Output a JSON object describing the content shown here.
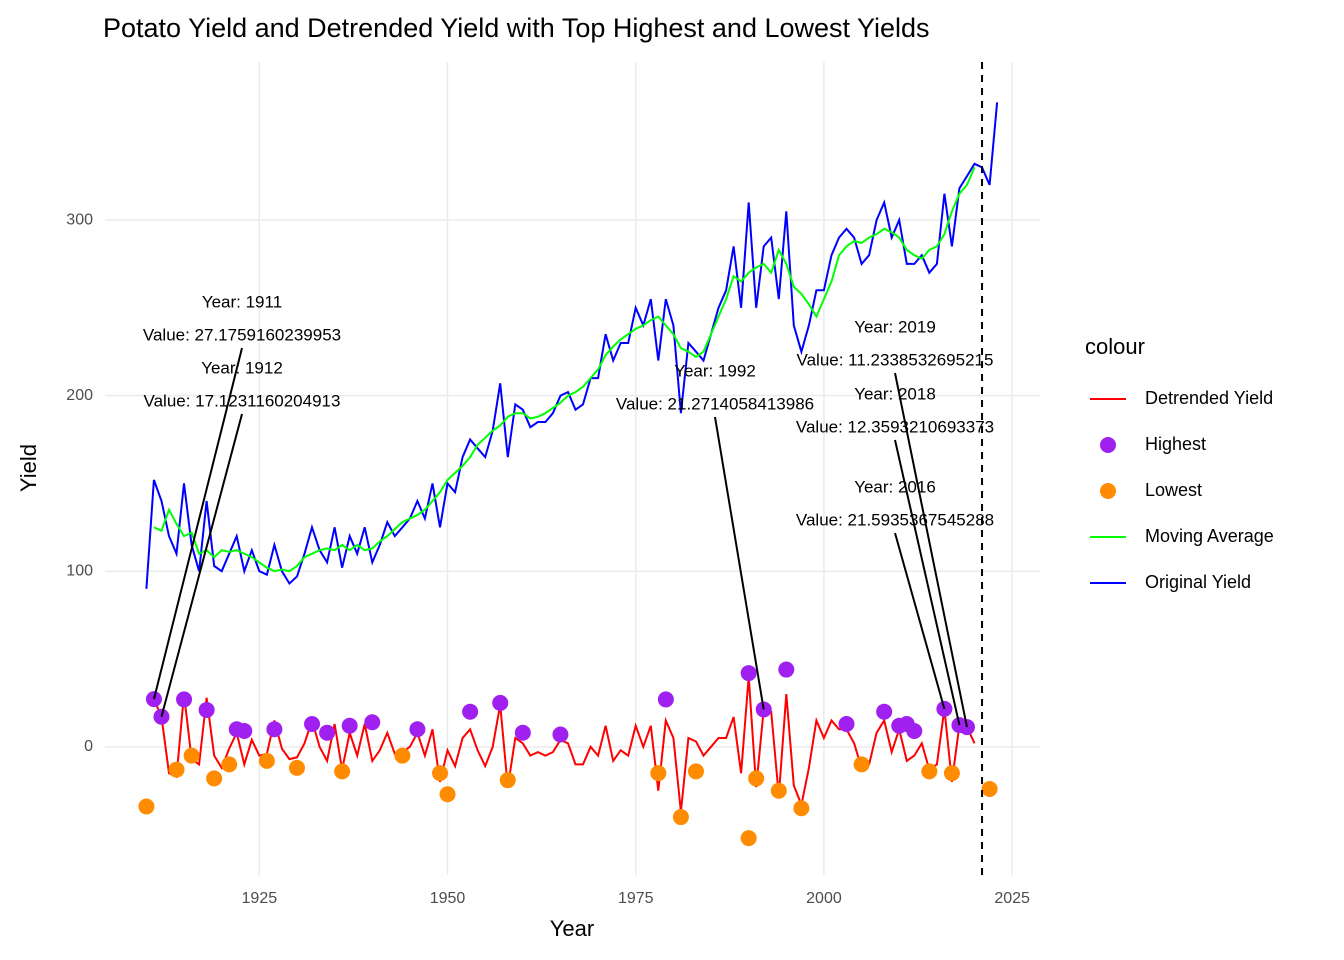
{
  "chart_data": {
    "type": "line",
    "title": "Potato Yield and Detrended Yield with Top Highest and Lowest Yields",
    "x_label": "Year",
    "y_label": "Yield",
    "legend_title": "colour",
    "xlim": [
      1904.5,
      2028.7
    ],
    "ylim": [
      -73,
      390
    ],
    "xticks": [
      1925,
      1950,
      1975,
      2000,
      2025
    ],
    "yticks": [
      0,
      100,
      200,
      300
    ],
    "grid": true,
    "vline": 2021,
    "x": [
      1910,
      1911,
      1912,
      1913,
      1914,
      1915,
      1916,
      1917,
      1918,
      1919,
      1920,
      1921,
      1922,
      1923,
      1924,
      1925,
      1926,
      1927,
      1928,
      1929,
      1930,
      1931,
      1932,
      1933,
      1934,
      1935,
      1936,
      1937,
      1938,
      1939,
      1940,
      1941,
      1942,
      1943,
      1944,
      1945,
      1946,
      1947,
      1948,
      1949,
      1950,
      1951,
      1952,
      1953,
      1954,
      1955,
      1956,
      1957,
      1958,
      1959,
      1960,
      1961,
      1962,
      1963,
      1964,
      1965,
      1966,
      1967,
      1968,
      1969,
      1970,
      1971,
      1972,
      1973,
      1974,
      1975,
      1976,
      1977,
      1978,
      1979,
      1980,
      1981,
      1982,
      1983,
      1984,
      1985,
      1986,
      1987,
      1988,
      1989,
      1990,
      1991,
      1992,
      1993,
      1994,
      1995,
      1996,
      1997,
      1998,
      1999,
      2000,
      2001,
      2002,
      2003,
      2004,
      2005,
      2006,
      2007,
      2008,
      2009,
      2010,
      2011,
      2012,
      2013,
      2014,
      2015,
      2016,
      2017,
      2018,
      2019,
      2020,
      2021,
      2022,
      2023
    ],
    "series": [
      {
        "name": "Detrended Yield",
        "color": "#ff0000",
        "values": [
          null,
          27.1759160239953,
          17.1231160204913,
          -15,
          -17,
          30,
          -7,
          -10,
          28,
          -5,
          -12,
          -1,
          8,
          -10,
          4,
          -5,
          -4,
          15,
          -1,
          -7,
          -6,
          2,
          15,
          0,
          -8,
          13,
          -13,
          8,
          -5,
          13,
          -8,
          -2,
          8,
          -4,
          -3,
          0,
          8,
          -5,
          10,
          -20,
          -2,
          -11,
          5,
          10,
          -2,
          -11,
          0,
          24,
          -23,
          5,
          2,
          -5,
          -3,
          -5,
          -3,
          4,
          2,
          -10,
          -10,
          0,
          -5,
          12,
          -8,
          -2,
          -5,
          12,
          0,
          12,
          -25,
          15,
          5,
          -37,
          5,
          3,
          -5,
          0,
          5,
          5,
          17,
          -15,
          40,
          -23,
          21.2714058413986,
          20,
          -28,
          30,
          -22,
          -33,
          -12,
          15,
          5,
          15,
          10,
          10,
          2,
          -12,
          -10,
          8,
          15,
          -3,
          10,
          -8,
          -5,
          2,
          -13,
          -10,
          21.5935367545288,
          -20,
          12.3593210693373,
          11.2338532695215,
          2,
          null,
          null,
          null
        ]
      },
      {
        "name": "Moving Average",
        "color": "#00ff00",
        "values": [
          null,
          125,
          123,
          135,
          127,
          120,
          122,
          110,
          112,
          108,
          112,
          111,
          112,
          110,
          108,
          105,
          102,
          100,
          101,
          100,
          103,
          108,
          110,
          112,
          113,
          112,
          115,
          112,
          115,
          112,
          113,
          117,
          120,
          124,
          128,
          130,
          132,
          135,
          140,
          145,
          152,
          156,
          160,
          165,
          172,
          176,
          180,
          183,
          188,
          190,
          190,
          187,
          188,
          190,
          193,
          196,
          200,
          202,
          205,
          210,
          215,
          223,
          228,
          232,
          235,
          238,
          240,
          243,
          245,
          240,
          235,
          227,
          225,
          222,
          225,
          235,
          245,
          255,
          268,
          265,
          270,
          273,
          275,
          270,
          283,
          275,
          262,
          258,
          252,
          245,
          255,
          265,
          280,
          285,
          288,
          287,
          290,
          292,
          295,
          293,
          290,
          283,
          280,
          278,
          283,
          285,
          292,
          305,
          315,
          320,
          330,
          null,
          null,
          null
        ]
      },
      {
        "name": "Original Yield",
        "color": "#0000ff",
        "values": [
          90,
          152,
          140,
          120,
          110,
          150,
          115,
          100,
          140,
          103,
          100,
          110,
          120,
          100,
          112,
          100,
          98,
          115,
          100,
          93,
          97,
          110,
          125,
          112,
          105,
          125,
          102,
          120,
          110,
          125,
          105,
          115,
          128,
          120,
          125,
          130,
          140,
          130,
          150,
          125,
          150,
          145,
          165,
          175,
          170,
          165,
          180,
          207,
          165,
          195,
          192,
          182,
          185,
          185,
          190,
          200,
          202,
          192,
          195,
          210,
          210,
          235,
          220,
          230,
          230,
          250,
          240,
          255,
          220,
          255,
          240,
          190,
          230,
          225,
          220,
          235,
          250,
          260,
          285,
          250,
          310,
          250,
          285,
          290,
          255,
          305,
          240,
          225,
          240,
          260,
          260,
          280,
          290,
          295,
          290,
          275,
          280,
          300,
          310,
          290,
          300,
          275,
          275,
          280,
          270,
          275,
          315,
          285,
          318,
          325,
          332,
          330,
          320,
          367
        ]
      }
    ],
    "points": [
      {
        "name": "Highest",
        "color": "#a020f0",
        "x": [
          1911,
          1912,
          1915,
          1918,
          1922,
          1923,
          1927,
          1932,
          1934,
          1937,
          1940,
          1946,
          1953,
          1957,
          1960,
          1965,
          1979,
          1990,
          1992,
          1995,
          2003,
          2008,
          2010,
          2011,
          2012,
          2016,
          2018,
          2019
        ],
        "values": [
          27.1759160239953,
          17.1231160204913,
          27,
          21,
          10,
          9,
          10,
          13,
          8,
          12,
          14,
          10,
          20,
          25,
          8,
          7,
          27,
          42,
          21.2714058413986,
          44,
          13,
          20,
          12,
          13,
          9,
          21.5935367545288,
          12.3593210693373,
          11.2338532695215
        ]
      },
      {
        "name": "Lowest",
        "color": "#ff8c00",
        "x": [
          1910,
          1914,
          1916,
          1919,
          1921,
          1926,
          1930,
          1936,
          1944,
          1949,
          1950,
          1958,
          1978,
          1981,
          1983,
          1990,
          1991,
          1994,
          1997,
          2005,
          2014,
          2017,
          2022
        ],
        "values": [
          -34,
          -13,
          -5,
          -18,
          -10,
          -8,
          -12,
          -14,
          -5,
          -15,
          -27,
          -19,
          -15,
          -40,
          -14,
          -52,
          -18,
          -25,
          -35,
          -10,
          -14,
          -15,
          -24
        ]
      }
    ],
    "annotations": [
      {
        "year_text": "Year: 1911",
        "value_text": "Value: 27.1759160239953"
      },
      {
        "year_text": "Year: 1912",
        "value_text": "Value: 17.1231160204913"
      },
      {
        "year_text": "Year: 1992",
        "value_text": "Value: 21.2714058413986"
      },
      {
        "year_text": "Year: 2019",
        "value_text": "Value: 11.2338532695215"
      },
      {
        "year_text": "Year: 2018",
        "value_text": "Value: 12.3593210693373"
      },
      {
        "year_text": "Year: 2016",
        "value_text": "Value: 21.5935367545288"
      }
    ]
  }
}
